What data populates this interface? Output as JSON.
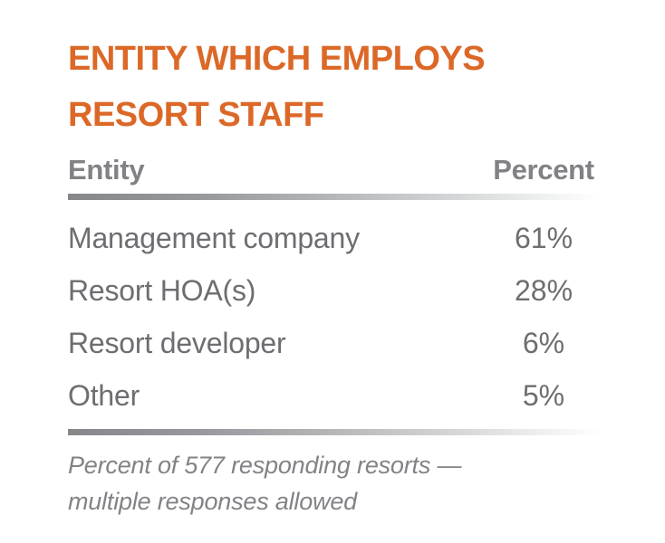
{
  "title": "ENTITY WHICH EMPLOYS RESORT STAFF",
  "table": {
    "header": {
      "entity": "Entity",
      "percent": "Percent"
    },
    "rows": [
      {
        "entity": "Management company",
        "percent": "61%"
      },
      {
        "entity": "Resort HOA(s)",
        "percent": "28%"
      },
      {
        "entity": "Resort developer",
        "percent": "6%"
      },
      {
        "entity": "Other",
        "percent": "5%"
      }
    ]
  },
  "footnote": "Percent of 577 responding resorts — multiple responses allowed",
  "colors": {
    "title_orange": "#DC6828",
    "header_gray": "#808285",
    "body_gray": "#6D6E71",
    "footnote_gray": "#818386",
    "bar_gradient_start": "#85878A",
    "bar_gradient_end": "#FFFFFF"
  },
  "chart_data": {
    "type": "table",
    "title": "ENTITY WHICH EMPLOYS RESORT STAFF",
    "columns": [
      "Entity",
      "Percent"
    ],
    "categories": [
      "Management company",
      "Resort HOA(s)",
      "Resort developer",
      "Other"
    ],
    "values": [
      61,
      28,
      6,
      5
    ],
    "unit": "percent",
    "note": "Percent of 577 responding resorts — multiple responses allowed",
    "sample_size": 577,
    "multiple_responses_allowed": true
  }
}
